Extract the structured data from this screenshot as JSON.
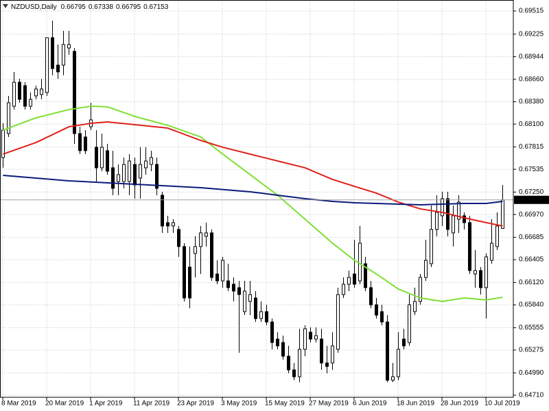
{
  "chart_data": {
    "type": "candlestick",
    "title": "NZDUSD,Daily",
    "ohlc_header": [
      0.66795,
      0.67338,
      0.66795,
      0.67153
    ],
    "current_price": 0.67153,
    "up_color": "#ffffff",
    "down_color": "#000000",
    "grid": true,
    "grid_color": "#c0c0c0",
    "categories": [
      "8 Mar 2019",
      null,
      null,
      null,
      null,
      null,
      null,
      null,
      "20 Mar 2019",
      null,
      null,
      null,
      null,
      null,
      null,
      null,
      "1 Apr 2019",
      null,
      null,
      null,
      null,
      null,
      null,
      null,
      "11 Apr 2019",
      null,
      null,
      null,
      null,
      null,
      null,
      null,
      "23 Apr 2019",
      null,
      null,
      null,
      null,
      null,
      null,
      null,
      "3 May 2019",
      null,
      null,
      null,
      null,
      null,
      null,
      null,
      "15 May 2019",
      null,
      null,
      null,
      null,
      null,
      null,
      null,
      "27 May 2019",
      null,
      null,
      null,
      null,
      null,
      null,
      null,
      "6 Jun 2019",
      null,
      null,
      null,
      null,
      null,
      null,
      null,
      "18 Jun 2019",
      null,
      null,
      null,
      null,
      null,
      null,
      null,
      "28 Jun 2019",
      null,
      null,
      null,
      null,
      null,
      null,
      null,
      "10 Jul 2019",
      null,
      null,
      null
    ],
    "open": [
      0.67682,
      0.67982,
      0.68324,
      0.68624,
      0.68581,
      0.68324,
      0.68453,
      0.6847,
      0.68496,
      0.69181,
      0.68838,
      0.68838,
      0.69052,
      0.6901,
      0.67982,
      0.67939,
      0.68067,
      0.67811,
      0.67554,
      0.67768,
      0.67554,
      0.67382,
      0.67382,
      0.67382,
      0.67596,
      0.67425,
      0.67554,
      0.67596,
      0.67596,
      0.67211,
      0.66868,
      0.66826,
      0.66783,
      0.66569,
      0.66312,
      0.66483,
      0.66569,
      0.66697,
      0.6674,
      0.66226,
      0.6614,
      0.6614,
      0.66098,
      0.66055,
      0.65755,
      0.65883,
      0.65926,
      0.65669,
      0.65755,
      0.65626,
      0.65412,
      0.65369,
      0.65198,
      0.65027,
      0.64941,
      0.65284,
      0.65498,
      0.65412,
      0.65412,
      0.65113,
      0.65113,
      0.65284,
      0.65969,
      0.66098,
      0.66226,
      0.6614,
      0.66354,
      0.66055,
      0.65841,
      0.65755,
      0.65626,
      0.64898,
      0.64941,
      0.65412,
      0.65369,
      0.65755,
      0.65883,
      0.66183,
      0.66354,
      0.66783,
      0.66954,
      0.67168,
      0.6674,
      0.66911,
      0.66954,
      0.66868,
      0.66226,
      0.66269,
      0.66055,
      0.66397,
      0.66569,
      0.66795
    ],
    "high": [
      0.6811,
      0.68453,
      0.68753,
      0.68667,
      0.68624,
      0.68496,
      0.68581,
      0.68667,
      0.69181,
      0.69395,
      0.69095,
      0.69267,
      0.69267,
      0.69052,
      0.68067,
      0.68025,
      0.68367,
      0.68025,
      0.67982,
      0.67853,
      0.67768,
      0.67596,
      0.67682,
      0.67725,
      0.67682,
      0.67811,
      0.67811,
      0.67768,
      0.67682,
      0.67254,
      0.66954,
      0.66911,
      0.66826,
      0.66611,
      0.66569,
      0.66697,
      0.66826,
      0.66868,
      0.66783,
      0.66397,
      0.6644,
      0.66354,
      0.66183,
      0.6614,
      0.6614,
      0.6614,
      0.66012,
      0.65883,
      0.65841,
      0.65669,
      0.65498,
      0.65455,
      0.65327,
      0.65113,
      0.65541,
      0.65584,
      0.65558,
      0.65558,
      0.65541,
      0.65327,
      0.65498,
      0.66055,
      0.66183,
      0.66269,
      0.66654,
      0.66826,
      0.6644,
      0.6614,
      0.65926,
      0.65841,
      0.65712,
      0.65113,
      0.65498,
      0.65541,
      0.65969,
      0.66055,
      0.66226,
      0.66654,
      0.67082,
      0.67211,
      0.67254,
      0.67254,
      0.67082,
      0.67211,
      0.66997,
      0.66954,
      0.66526,
      0.66312,
      0.66483,
      0.66911,
      0.66997,
      0.67338
    ],
    "low": [
      0.67554,
      0.67939,
      0.68282,
      0.68367,
      0.68282,
      0.68282,
      0.6841,
      0.6841,
      0.68453,
      0.6871,
      0.68667,
      0.6871,
      0.68967,
      0.67853,
      0.67725,
      0.67725,
      0.68025,
      0.67382,
      0.67511,
      0.67468,
      0.67211,
      0.67211,
      0.67297,
      0.67211,
      0.67168,
      0.67168,
      0.67468,
      0.67511,
      0.67211,
      0.6674,
      0.6674,
      0.6674,
      0.6644,
      0.65883,
      0.65798,
      0.66183,
      0.66226,
      0.66569,
      0.6614,
      0.66098,
      0.66055,
      0.66012,
      0.65883,
      0.65241,
      0.65712,
      0.65712,
      0.65626,
      0.65626,
      0.65584,
      0.65284,
      0.65284,
      0.65155,
      0.64984,
      0.64898,
      0.64873,
      0.65198,
      0.65369,
      0.65369,
      0.65027,
      0.64984,
      0.65027,
      0.65241,
      0.65926,
      0.66012,
      0.66055,
      0.66098,
      0.66012,
      0.65798,
      0.65669,
      0.65584,
      0.64873,
      0.64873,
      0.64898,
      0.65284,
      0.65327,
      0.65712,
      0.65841,
      0.6614,
      0.66312,
      0.66697,
      0.66826,
      0.66697,
      0.66569,
      0.6674,
      0.66783,
      0.66226,
      0.66055,
      0.65969,
      0.65669,
      0.66354,
      0.66526,
      0.66795
    ],
    "close": [
      0.68025,
      0.68367,
      0.68624,
      0.6841,
      0.68324,
      0.6841,
      0.68539,
      0.68539,
      0.69181,
      0.68795,
      0.68753,
      0.69095,
      0.69095,
      0.67982,
      0.67768,
      0.67768,
      0.68153,
      0.67554,
      0.67811,
      0.67511,
      0.67297,
      0.67468,
      0.67596,
      0.67639,
      0.67339,
      0.67596,
      0.67639,
      0.67682,
      0.67297,
      0.66826,
      0.66826,
      0.66868,
      0.66569,
      0.65926,
      0.65926,
      0.66569,
      0.6674,
      0.6674,
      0.66183,
      0.6614,
      0.66397,
      0.66055,
      0.66012,
      0.65969,
      0.66012,
      0.65969,
      0.65669,
      0.65755,
      0.65626,
      0.65369,
      0.65327,
      0.65198,
      0.65027,
      0.64941,
      0.65284,
      0.65541,
      0.65412,
      0.65455,
      0.65113,
      0.6507,
      0.65327,
      0.65969,
      0.66098,
      0.66183,
      0.66098,
      0.66611,
      0.66055,
      0.65841,
      0.65712,
      0.65626,
      0.64898,
      0.64941,
      0.65284,
      0.65327,
      0.65841,
      0.65883,
      0.66183,
      0.66397,
      0.66783,
      0.66997,
      0.67168,
      0.66783,
      0.66954,
      0.67125,
      0.66868,
      0.66269,
      0.66269,
      0.66055,
      0.6644,
      0.66611,
      0.66826,
      0.67153
    ],
    "lines": [
      {
        "color": "#7ee032",
        "x": [
          0,
          6,
          12,
          16,
          19,
          24,
          30,
          36,
          40,
          45,
          50,
          55,
          60,
          64,
          68,
          72,
          76,
          80,
          84,
          88,
          91
        ],
        "values": [
          0.68025,
          0.68179,
          0.68282,
          0.68324,
          0.68316,
          0.68196,
          0.68085,
          0.67939,
          0.67725,
          0.67468,
          0.67211,
          0.66911,
          0.66611,
          0.66397,
          0.66226,
          0.66038,
          0.65926,
          0.65883,
          0.65926,
          0.65901,
          0.65935
        ]
      },
      {
        "color": "#e0201a",
        "x": [
          0,
          6,
          12,
          16,
          19,
          24,
          30,
          36,
          40,
          45,
          50,
          55,
          60,
          64,
          68,
          72,
          76,
          80,
          84,
          88,
          91
        ],
        "values": [
          0.67725,
          0.6787,
          0.68067,
          0.6811,
          0.68127,
          0.68093,
          0.6805,
          0.67896,
          0.67811,
          0.67725,
          0.67639,
          0.67554,
          0.67408,
          0.67322,
          0.67237,
          0.67125,
          0.6704,
          0.66997,
          0.66928,
          0.66868,
          0.66826
        ]
      },
      {
        "color": "#0c1a7a",
        "x": [
          0,
          12,
          24,
          36,
          45,
          50,
          55,
          60,
          64,
          72,
          76,
          80,
          84,
          88,
          91
        ],
        "values": [
          0.67459,
          0.67391,
          0.67348,
          0.67305,
          0.67254,
          0.67211,
          0.67168,
          0.67134,
          0.67117,
          0.671,
          0.67091,
          0.671,
          0.67108,
          0.67108,
          0.67134
        ]
      }
    ],
    "ylim": [
      0.64684,
      0.69652
    ],
    "yticks": [
      0.69515,
      0.69225,
      0.68944,
      {
        "value": 0.6866,
        "label": "0.68660"
      },
      {
        "value": 0.6838,
        "label": "0.68380"
      },
      {
        "value": 0.681,
        "label": "0.68100"
      },
      0.67815,
      0.67535,
      {
        "value": 0.6725,
        "label": "0.67250"
      },
      {
        "value": 0.6697,
        "label": "0.66970"
      },
      0.66685,
      0.66405,
      {
        "value": 0.6612,
        "label": "0.66120"
      },
      {
        "value": 0.6584,
        "label": "0.65840"
      },
      0.65555,
      0.65275,
      {
        "value": 0.6499,
        "label": "0.64990"
      },
      {
        "value": 0.6471,
        "label": "0.64710"
      }
    ]
  }
}
